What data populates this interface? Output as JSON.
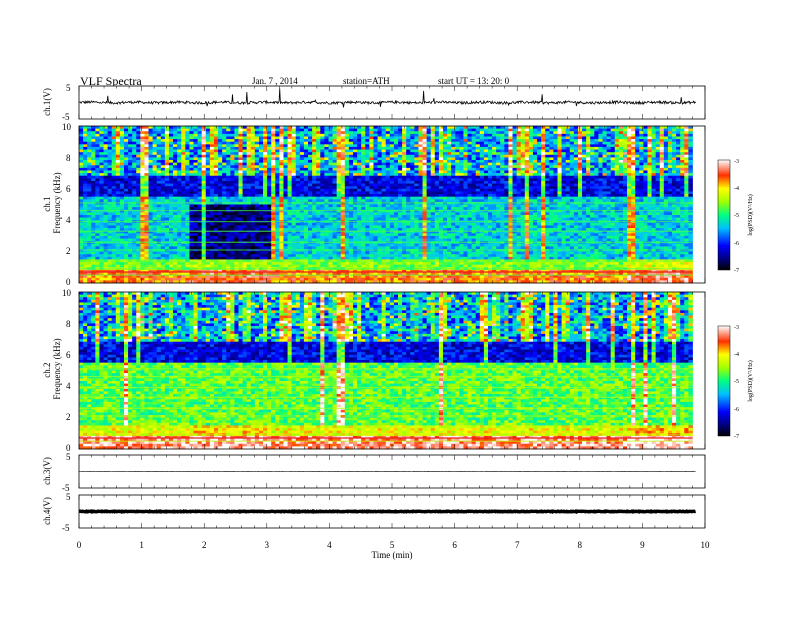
{
  "header": {
    "title": "VLF  Spectra",
    "date": "Jan.  7  , 2014",
    "station": "station=ATH",
    "start": "start  UT  =   13: 20: 0"
  },
  "chart_data": [
    {
      "type": "line",
      "ylabel": "ch.1(V)",
      "ylim": [
        -5,
        5
      ],
      "yticks": [
        "5",
        "-5"
      ],
      "xlim": [
        0,
        10
      ],
      "description_trace": "noisy waveform near 0 V with spikes"
    },
    {
      "type": "heatmap",
      "ylabel_lines": [
        "ch.1",
        "Frequency  (kHz)"
      ],
      "ylim": [
        0,
        10
      ],
      "yticks": [
        "10",
        "8",
        "6",
        "4",
        "2",
        "0"
      ],
      "xlim": [
        0,
        9.8
      ],
      "colorbar": {
        "label": "log(PSD)(V²/Hz)",
        "range": [
          -7,
          -3
        ],
        "ticks": [
          "-3",
          "-4",
          "-5",
          "-6",
          "-7"
        ]
      },
      "band_events_min": [
        1.75,
        3.05,
        8.75
      ]
    },
    {
      "type": "heatmap",
      "ylabel_lines": [
        "ch.2",
        "Frequency  (kHz)"
      ],
      "ylim": [
        0,
        10
      ],
      "yticks": [
        "10",
        "8",
        "6",
        "4",
        "2",
        "0"
      ],
      "xlim": [
        0,
        9.8
      ],
      "colorbar": {
        "label": "log(PSD)(V²/Hz)",
        "range": [
          -7,
          -3
        ],
        "ticks": [
          "-3",
          "-4",
          "-5",
          "-6",
          "-7"
        ]
      },
      "band_events_min": [
        1.75,
        3.05,
        8.75
      ]
    },
    {
      "type": "line",
      "ylabel": "ch.3(V)",
      "ylim": [
        -5,
        5
      ],
      "yticks": [
        "5",
        "-5"
      ],
      "xlim": [
        0,
        10
      ],
      "description_trace": "flat trace near 0 V"
    },
    {
      "type": "line",
      "ylabel": "ch.4(V)",
      "ylim": [
        -5,
        5
      ],
      "yticks": [
        "5",
        "-5"
      ],
      "xlim": [
        0,
        10
      ],
      "description_trace": "thick flat trace near 0 V"
    }
  ],
  "xaxis": {
    "label": "Time  (min)",
    "ticks": [
      "0",
      "1",
      "2",
      "3",
      "4",
      "5",
      "6",
      "7",
      "8",
      "9",
      "10"
    ]
  }
}
